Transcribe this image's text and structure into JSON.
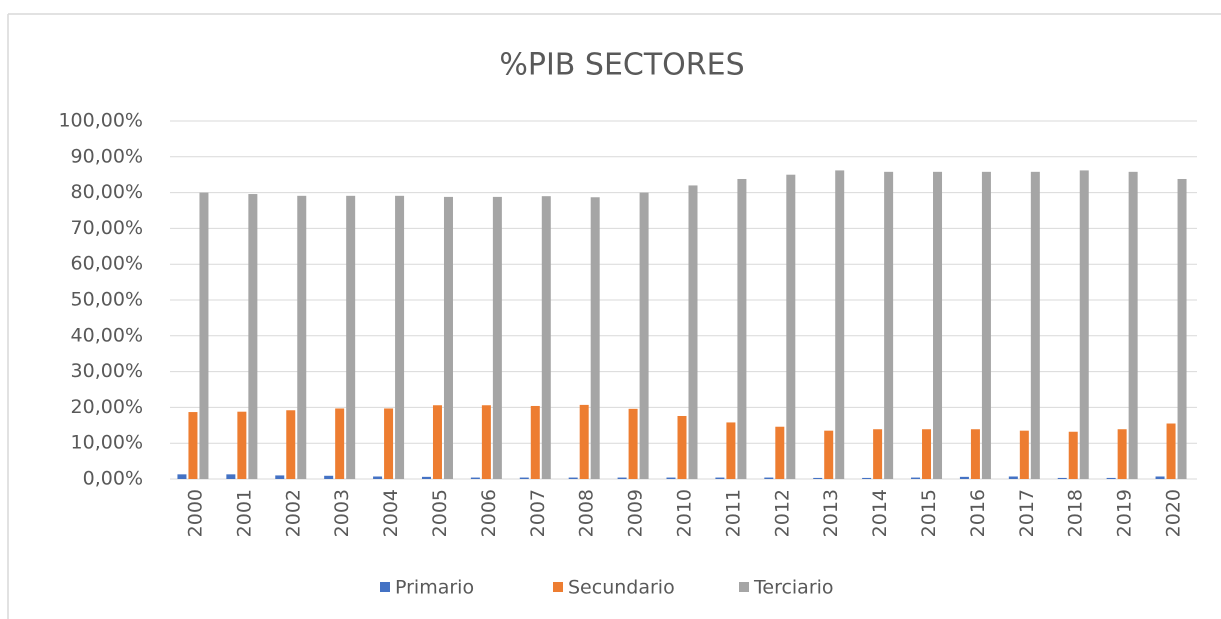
{
  "chart_data": {
    "type": "bar",
    "title": "%PIB SECTORES",
    "categories": [
      "2000",
      "2001",
      "2002",
      "2003",
      "2004",
      "2005",
      "2006",
      "2007",
      "2008",
      "2009",
      "2010",
      "2011",
      "2012",
      "2013",
      "2014",
      "2015",
      "2016",
      "2017",
      "2018",
      "2019",
      "2020"
    ],
    "series": [
      {
        "name": "Primario",
        "color": "#4472c4",
        "values": [
          1.3,
          1.3,
          1.0,
          0.9,
          0.7,
          0.6,
          0.4,
          0.4,
          0.4,
          0.4,
          0.4,
          0.4,
          0.4,
          0.3,
          0.3,
          0.4,
          0.6,
          0.7,
          0.3,
          0.3,
          0.7
        ]
      },
      {
        "name": "Secundario",
        "color": "#ed7d31",
        "values": [
          18.7,
          18.8,
          19.2,
          19.7,
          19.7,
          20.6,
          20.6,
          20.4,
          20.7,
          19.6,
          17.6,
          15.8,
          14.6,
          13.5,
          13.9,
          13.9,
          13.9,
          13.5,
          13.2,
          13.9,
          15.5
        ]
      },
      {
        "name": "Terciario",
        "color": "#a5a5a5",
        "values": [
          80.0,
          79.6,
          79.1,
          79.1,
          79.1,
          78.8,
          78.8,
          79.0,
          78.7,
          80.0,
          82.0,
          83.8,
          85.0,
          86.2,
          85.8,
          85.8,
          85.8,
          85.8,
          86.2,
          85.8,
          83.8
        ]
      }
    ],
    "ylim": [
      0,
      100
    ],
    "yticks": [
      {
        "value": 0,
        "label": "0,00%"
      },
      {
        "value": 10,
        "label": "10,00%"
      },
      {
        "value": 20,
        "label": "20,00%"
      },
      {
        "value": 30,
        "label": "30,00%"
      },
      {
        "value": 40,
        "label": "40,00%"
      },
      {
        "value": 50,
        "label": "50,00%"
      },
      {
        "value": 60,
        "label": "60,00%"
      },
      {
        "value": 70,
        "label": "70,00%"
      },
      {
        "value": 80,
        "label": "80,00%"
      },
      {
        "value": 90,
        "label": "90,00%"
      },
      {
        "value": 100,
        "label": "100,00%"
      }
    ],
    "grid": true,
    "legend": "bottom"
  }
}
